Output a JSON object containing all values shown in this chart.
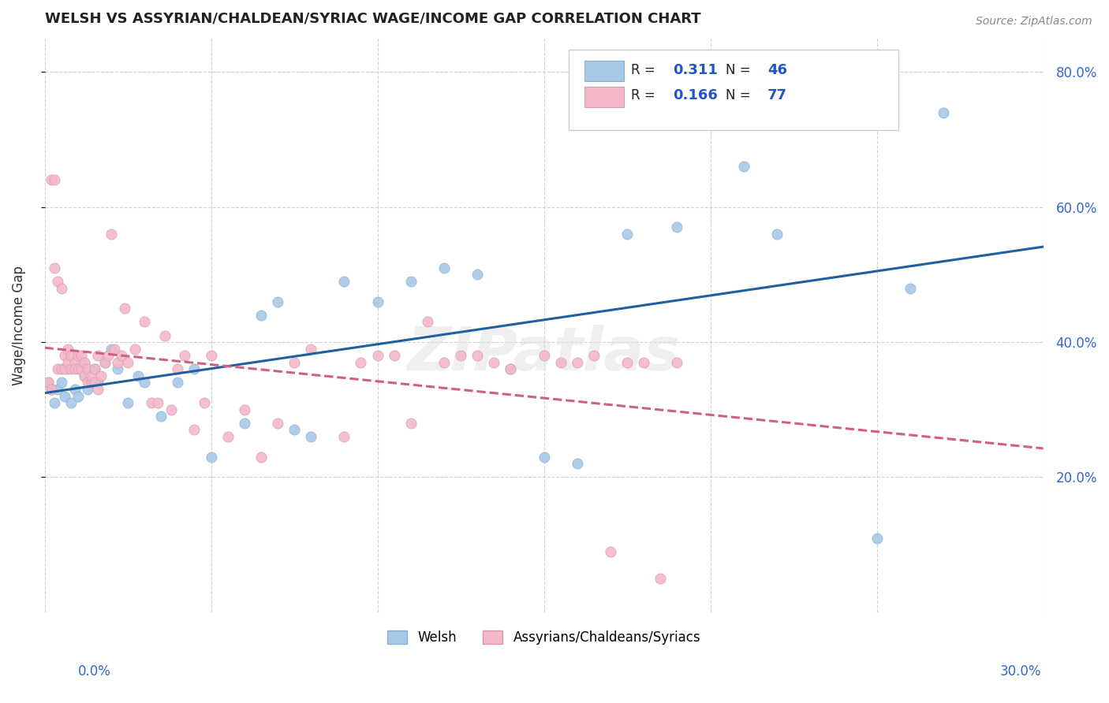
{
  "title": "WELSH VS ASSYRIAN/CHALDEAN/SYRIAC WAGE/INCOME GAP CORRELATION CHART",
  "source": "Source: ZipAtlas.com",
  "ylabel": "Wage/Income Gap",
  "xmin": 0.0,
  "xmax": 0.3,
  "ymin": 0.0,
  "ymax": 0.85,
  "legend_label1": "Welsh",
  "legend_label2": "Assyrians/Chaldeans/Syriacs",
  "R1": "0.311",
  "N1": "46",
  "R2": "0.166",
  "N2": "77",
  "color_blue": "#a8c8e8",
  "color_pink": "#f4b8c8",
  "trend_blue": "#2060a0",
  "trend_pink": "#d06080",
  "watermark": "ZIPatlas",
  "blue_scatter_x": [
    0.001,
    0.002,
    0.003,
    0.004,
    0.005,
    0.006,
    0.007,
    0.008,
    0.009,
    0.01,
    0.011,
    0.012,
    0.013,
    0.014,
    0.015,
    0.016,
    0.018,
    0.02,
    0.022,
    0.025,
    0.028,
    0.03,
    0.035,
    0.04,
    0.045,
    0.05,
    0.06,
    0.065,
    0.07,
    0.075,
    0.08,
    0.09,
    0.1,
    0.11,
    0.12,
    0.13,
    0.14,
    0.15,
    0.16,
    0.175,
    0.19,
    0.21,
    0.22,
    0.25,
    0.26,
    0.27
  ],
  "blue_scatter_y": [
    0.34,
    0.33,
    0.31,
    0.33,
    0.34,
    0.32,
    0.36,
    0.31,
    0.33,
    0.32,
    0.37,
    0.35,
    0.33,
    0.34,
    0.36,
    0.34,
    0.37,
    0.39,
    0.36,
    0.31,
    0.35,
    0.34,
    0.29,
    0.34,
    0.36,
    0.23,
    0.28,
    0.44,
    0.46,
    0.27,
    0.26,
    0.49,
    0.46,
    0.49,
    0.51,
    0.5,
    0.36,
    0.23,
    0.22,
    0.56,
    0.57,
    0.66,
    0.56,
    0.11,
    0.48,
    0.74
  ],
  "pink_scatter_x": [
    0.001,
    0.002,
    0.002,
    0.003,
    0.003,
    0.004,
    0.004,
    0.005,
    0.005,
    0.006,
    0.006,
    0.007,
    0.007,
    0.008,
    0.008,
    0.009,
    0.009,
    0.01,
    0.01,
    0.011,
    0.011,
    0.012,
    0.012,
    0.013,
    0.013,
    0.014,
    0.014,
    0.015,
    0.015,
    0.016,
    0.016,
    0.017,
    0.018,
    0.019,
    0.02,
    0.021,
    0.022,
    0.023,
    0.024,
    0.025,
    0.027,
    0.03,
    0.032,
    0.034,
    0.036,
    0.038,
    0.04,
    0.042,
    0.045,
    0.048,
    0.05,
    0.055,
    0.06,
    0.065,
    0.07,
    0.075,
    0.08,
    0.09,
    0.095,
    0.1,
    0.105,
    0.11,
    0.115,
    0.12,
    0.125,
    0.13,
    0.135,
    0.14,
    0.15,
    0.155,
    0.16,
    0.165,
    0.17,
    0.175,
    0.18,
    0.185,
    0.19
  ],
  "pink_scatter_y": [
    0.34,
    0.33,
    0.64,
    0.51,
    0.64,
    0.36,
    0.49,
    0.36,
    0.48,
    0.36,
    0.38,
    0.37,
    0.39,
    0.36,
    0.38,
    0.37,
    0.36,
    0.36,
    0.38,
    0.36,
    0.38,
    0.35,
    0.37,
    0.34,
    0.36,
    0.34,
    0.35,
    0.34,
    0.36,
    0.33,
    0.38,
    0.35,
    0.37,
    0.38,
    0.56,
    0.39,
    0.37,
    0.38,
    0.45,
    0.37,
    0.39,
    0.43,
    0.31,
    0.31,
    0.41,
    0.3,
    0.36,
    0.38,
    0.27,
    0.31,
    0.38,
    0.26,
    0.3,
    0.23,
    0.28,
    0.37,
    0.39,
    0.26,
    0.37,
    0.38,
    0.38,
    0.28,
    0.43,
    0.37,
    0.38,
    0.38,
    0.37,
    0.36,
    0.38,
    0.37,
    0.37,
    0.38,
    0.09,
    0.37,
    0.37,
    0.05,
    0.37
  ]
}
